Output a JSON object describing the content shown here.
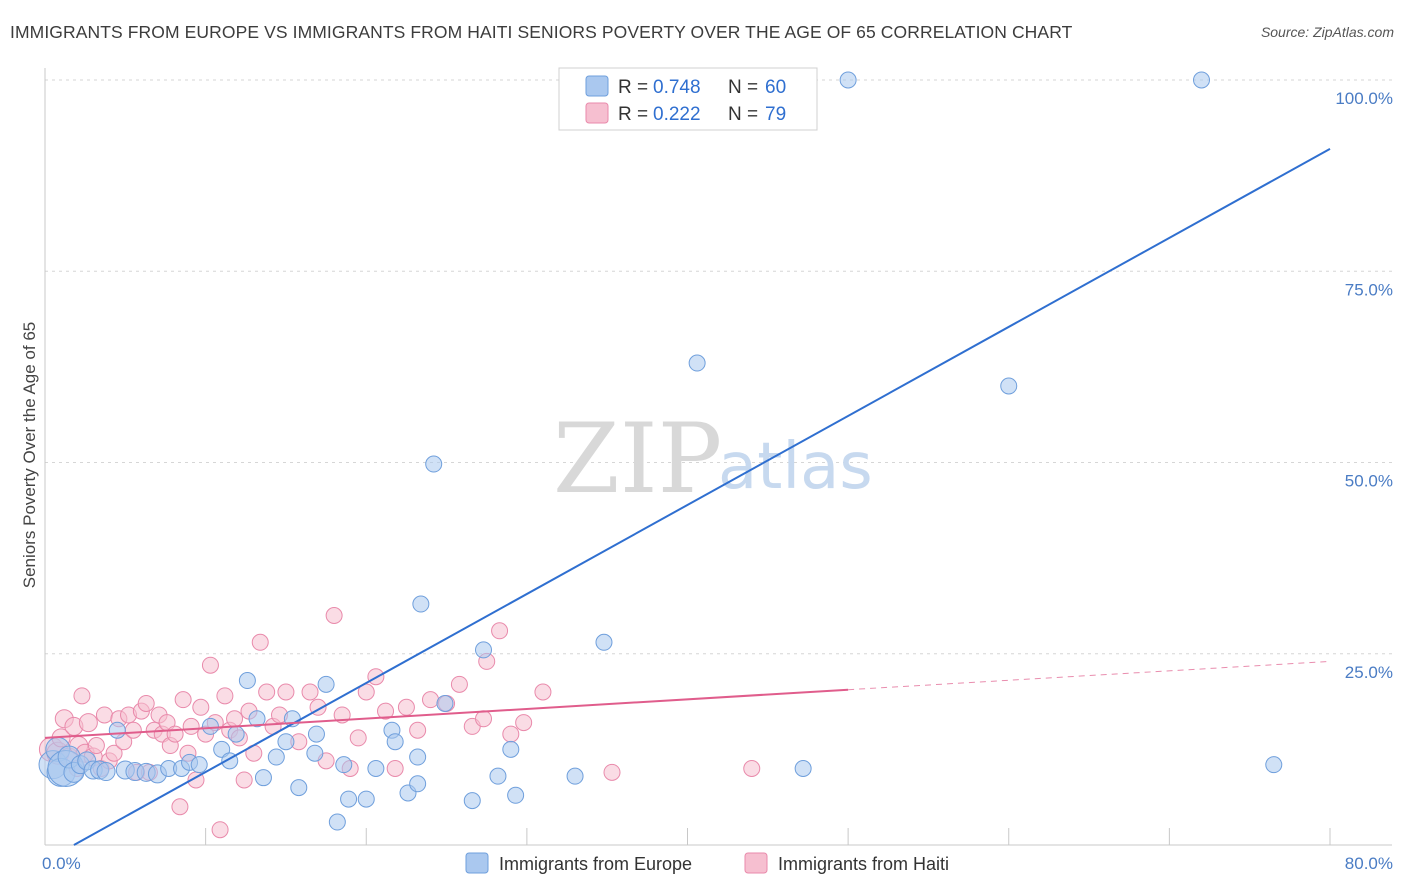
{
  "title": "IMMIGRANTS FROM EUROPE VS IMMIGRANTS FROM HAITI SENIORS POVERTY OVER THE AGE OF 65 CORRELATION CHART",
  "source": "Source: ZipAtlas.com",
  "watermark": {
    "zip": "ZIP",
    "atlas": "atlas"
  },
  "colors": {
    "europe_fill": "#aac8ef",
    "europe_stroke": "#6f9fdc",
    "europe_line": "#2f6fd0",
    "haiti_fill": "#f6bfd0",
    "haiti_stroke": "#e98aab",
    "haiti_line": "#e05d8c",
    "grid": "#d6d6d6",
    "tick_label": "#4a7cc4"
  },
  "legend": {
    "europe": {
      "r_label": "R = ",
      "r_value": "0.748",
      "n_label": "N = ",
      "n_value": "60"
    },
    "haiti": {
      "r_label": "R = ",
      "r_value": "0.222",
      "n_label": "N = ",
      "n_value": "79"
    }
  },
  "bottom_legend": {
    "europe": "Immigrants from Europe",
    "haiti": "Immigrants from Haiti"
  },
  "chart_data": {
    "type": "scatter",
    "title": "IMMIGRANTS FROM EUROPE VS IMMIGRANTS FROM HAITI SENIORS POVERTY OVER THE AGE OF 65 CORRELATION CHART",
    "xlabel": "",
    "ylabel": "Seniors Poverty Over the Age of 65",
    "xlim": [
      0,
      80
    ],
    "ylim": [
      0,
      100
    ],
    "x_tick_labels": [
      "0.0%",
      "80.0%"
    ],
    "y_ticks": [
      25,
      50,
      75,
      100
    ],
    "y_tick_labels": [
      "25.0%",
      "50.0%",
      "75.0%",
      "100.0%"
    ],
    "grid": true,
    "series": [
      {
        "name": "Immigrants from Europe",
        "r": 0.748,
        "n": 60,
        "trend": {
          "x1": 1.8,
          "y1": 0,
          "x2": 80,
          "y2": 91
        },
        "points": [
          [
            0.5,
            10.5,
            14
          ],
          [
            0.8,
            12.5,
            12
          ],
          [
            1.0,
            9.5,
            14
          ],
          [
            1.3,
            10.0,
            18
          ],
          [
            1.5,
            11.5,
            11
          ],
          [
            1.8,
            9.5,
            10
          ],
          [
            2.2,
            10.5,
            9
          ],
          [
            2.6,
            11.0,
            9
          ],
          [
            3.0,
            9.8,
            9
          ],
          [
            3.4,
            9.8,
            9
          ],
          [
            3.8,
            9.6,
            9
          ],
          [
            4.5,
            15.0,
            8
          ],
          [
            5.0,
            9.8,
            9
          ],
          [
            5.6,
            9.6,
            9
          ],
          [
            6.3,
            9.5,
            9
          ],
          [
            7.0,
            9.3,
            9
          ],
          [
            7.7,
            10.0,
            8
          ],
          [
            8.5,
            10.0,
            8
          ],
          [
            9.0,
            10.8,
            8
          ],
          [
            9.6,
            10.5,
            8
          ],
          [
            10.3,
            15.5,
            8
          ],
          [
            11.0,
            12.5,
            8
          ],
          [
            11.5,
            11.0,
            8
          ],
          [
            11.9,
            14.5,
            8
          ],
          [
            12.6,
            21.5,
            8
          ],
          [
            13.2,
            16.5,
            8
          ],
          [
            13.6,
            8.8,
            8
          ],
          [
            14.4,
            11.5,
            8
          ],
          [
            15.0,
            13.5,
            8
          ],
          [
            15.4,
            16.5,
            8
          ],
          [
            15.8,
            7.5,
            8
          ],
          [
            16.8,
            12.0,
            8
          ],
          [
            16.9,
            14.5,
            8
          ],
          [
            17.5,
            21.0,
            8
          ],
          [
            18.2,
            3.0,
            8
          ],
          [
            18.6,
            10.5,
            8
          ],
          [
            18.9,
            6.0,
            8
          ],
          [
            20.0,
            6.0,
            8
          ],
          [
            20.6,
            10.0,
            8
          ],
          [
            21.6,
            15.0,
            8
          ],
          [
            21.8,
            13.5,
            8
          ],
          [
            22.6,
            6.8,
            8
          ],
          [
            23.2,
            8.0,
            8
          ],
          [
            23.2,
            11.5,
            8
          ],
          [
            23.4,
            31.5,
            8
          ],
          [
            24.2,
            49.8,
            8
          ],
          [
            24.9,
            18.5,
            8
          ],
          [
            26.6,
            5.8,
            8
          ],
          [
            27.3,
            25.5,
            8
          ],
          [
            28.2,
            9.0,
            8
          ],
          [
            29.0,
            12.5,
            8
          ],
          [
            29.3,
            6.5,
            8
          ],
          [
            33.0,
            9.0,
            8
          ],
          [
            34.8,
            26.5,
            8
          ],
          [
            40.6,
            63.0,
            8
          ],
          [
            47.2,
            10.0,
            8
          ],
          [
            50.0,
            100.0,
            8
          ],
          [
            60.0,
            60.0,
            8
          ],
          [
            72.0,
            100.0,
            8
          ],
          [
            76.5,
            10.5,
            8
          ]
        ]
      },
      {
        "name": "Immigrants from Haiti",
        "r": 0.222,
        "n": 79,
        "trend": {
          "x1": 0,
          "y1": 14.0,
          "x2": 50,
          "y2": 20.3,
          "dashed_to_x": 80,
          "dashed_to_y": 24.0
        },
        "points": [
          [
            0.4,
            12.5,
            12
          ],
          [
            0.8,
            12.0,
            11
          ],
          [
            1.0,
            14.0,
            9
          ],
          [
            1.2,
            16.5,
            9
          ],
          [
            1.5,
            11.5,
            9
          ],
          [
            1.8,
            15.5,
            9
          ],
          [
            2.1,
            13.0,
            9
          ],
          [
            2.3,
            19.5,
            8
          ],
          [
            2.5,
            12.0,
            9
          ],
          [
            2.7,
            16.0,
            9
          ],
          [
            3.0,
            11.5,
            9
          ],
          [
            3.2,
            13.0,
            8
          ],
          [
            3.5,
            10.0,
            8
          ],
          [
            3.7,
            17.0,
            8
          ],
          [
            4.0,
            11.0,
            8
          ],
          [
            4.3,
            12.0,
            8
          ],
          [
            4.6,
            16.5,
            8
          ],
          [
            4.9,
            13.5,
            8
          ],
          [
            5.2,
            17.0,
            8
          ],
          [
            5.5,
            15.0,
            8
          ],
          [
            5.7,
            9.5,
            8
          ],
          [
            6.0,
            17.5,
            8
          ],
          [
            6.3,
            18.5,
            8
          ],
          [
            6.5,
            9.5,
            8
          ],
          [
            6.8,
            15.0,
            8
          ],
          [
            7.1,
            17.0,
            8
          ],
          [
            7.3,
            14.5,
            8
          ],
          [
            7.6,
            16.0,
            8
          ],
          [
            7.8,
            13.0,
            8
          ],
          [
            8.1,
            14.5,
            8
          ],
          [
            8.4,
            5.0,
            8
          ],
          [
            8.6,
            19.0,
            8
          ],
          [
            8.9,
            12.0,
            8
          ],
          [
            9.1,
            15.5,
            8
          ],
          [
            9.4,
            8.5,
            8
          ],
          [
            9.7,
            18.0,
            8
          ],
          [
            10.0,
            14.5,
            8
          ],
          [
            10.3,
            23.5,
            8
          ],
          [
            10.6,
            16.0,
            8
          ],
          [
            10.9,
            2.0,
            8
          ],
          [
            11.2,
            19.5,
            8
          ],
          [
            11.5,
            15.0,
            8
          ],
          [
            11.8,
            16.5,
            8
          ],
          [
            12.1,
            14.0,
            8
          ],
          [
            12.4,
            8.5,
            8
          ],
          [
            12.7,
            17.5,
            8
          ],
          [
            13.0,
            12.0,
            8
          ],
          [
            13.4,
            26.5,
            8
          ],
          [
            13.8,
            20.0,
            8
          ],
          [
            14.2,
            15.5,
            8
          ],
          [
            14.6,
            17.0,
            8
          ],
          [
            15.0,
            20.0,
            8
          ],
          [
            15.8,
            13.5,
            8
          ],
          [
            16.5,
            20.0,
            8
          ],
          [
            17.0,
            18.0,
            8
          ],
          [
            17.5,
            11.0,
            8
          ],
          [
            18.0,
            30.0,
            8
          ],
          [
            18.5,
            17.0,
            8
          ],
          [
            19.0,
            10.0,
            8
          ],
          [
            19.5,
            14.0,
            8
          ],
          [
            20.0,
            20.0,
            8
          ],
          [
            20.6,
            22.0,
            8
          ],
          [
            21.2,
            17.5,
            8
          ],
          [
            21.8,
            10.0,
            8
          ],
          [
            22.5,
            18.0,
            8
          ],
          [
            23.2,
            15.0,
            8
          ],
          [
            24.0,
            19.0,
            8
          ],
          [
            25.0,
            18.5,
            8
          ],
          [
            25.8,
            21.0,
            8
          ],
          [
            26.6,
            15.5,
            8
          ],
          [
            27.3,
            16.5,
            8
          ],
          [
            27.5,
            24.0,
            8
          ],
          [
            28.3,
            28.0,
            8
          ],
          [
            29.0,
            14.5,
            8
          ],
          [
            29.8,
            16.0,
            8
          ],
          [
            31.0,
            20.0,
            8
          ],
          [
            35.3,
            9.5,
            8
          ],
          [
            44.0,
            10.0,
            8
          ],
          [
            2.0,
            10.0,
            8
          ]
        ]
      }
    ]
  }
}
